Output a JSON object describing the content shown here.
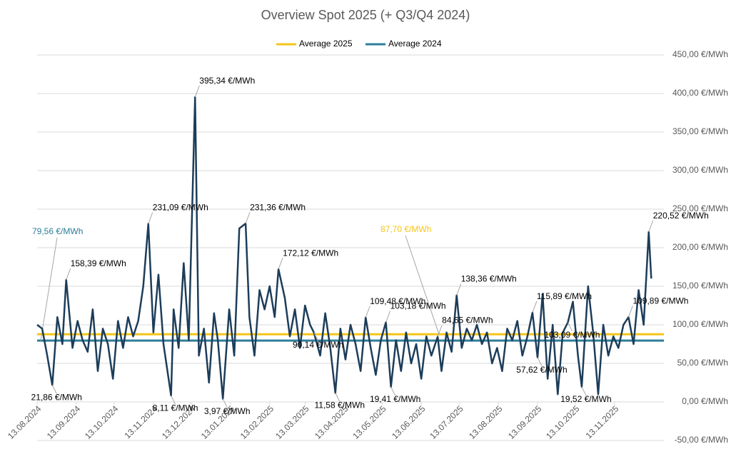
{
  "chart_data": {
    "type": "line",
    "title": "Overview Spot 2025 (+ Q3/Q4 2024)",
    "x": [
      "2024-08-13",
      "2024-08-17",
      "2024-08-21",
      "2024-08-25",
      "2024-08-29",
      "2024-09-02",
      "2024-09-05",
      "2024-09-10",
      "2024-09-14",
      "2024-09-18",
      "2024-09-22",
      "2024-09-26",
      "2024-09-30",
      "2024-10-04",
      "2024-10-08",
      "2024-10-12",
      "2024-10-16",
      "2024-10-20",
      "2024-10-24",
      "2024-10-28",
      "2024-11-01",
      "2024-11-05",
      "2024-11-09",
      "2024-11-13",
      "2024-11-17",
      "2024-11-21",
      "2024-11-27",
      "2024-11-29",
      "2024-12-03",
      "2024-12-07",
      "2024-12-11",
      "2024-12-16",
      "2024-12-19",
      "2024-12-23",
      "2024-12-27",
      "2024-12-31",
      "2025-01-03",
      "2025-01-07",
      "2025-01-12",
      "2025-01-16",
      "2025-01-20",
      "2025-01-25",
      "2025-01-28",
      "2025-02-01",
      "2025-02-05",
      "2025-02-09",
      "2025-02-13",
      "2025-02-17",
      "2025-02-20",
      "2025-02-25",
      "2025-03-01",
      "2025-03-05",
      "2025-03-09",
      "2025-03-13",
      "2025-03-17",
      "2025-03-20",
      "2025-03-25",
      "2025-03-29",
      "2025-04-02",
      "2025-04-06",
      "2025-04-10",
      "2025-04-14",
      "2025-04-18",
      "2025-04-22",
      "2025-04-26",
      "2025-04-30",
      "2025-05-04",
      "2025-05-08",
      "2025-05-12",
      "2025-05-16",
      "2025-05-20",
      "2025-05-24",
      "2025-05-28",
      "2025-06-01",
      "2025-06-05",
      "2025-06-09",
      "2025-06-13",
      "2025-06-17",
      "2025-06-21",
      "2025-06-26",
      "2025-06-29",
      "2025-07-03",
      "2025-07-07",
      "2025-07-11",
      "2025-07-15",
      "2025-07-19",
      "2025-07-23",
      "2025-07-27",
      "2025-07-31",
      "2025-08-04",
      "2025-08-08",
      "2025-08-12",
      "2025-08-16",
      "2025-08-20",
      "2025-08-24",
      "2025-08-28",
      "2025-09-01",
      "2025-09-05",
      "2025-09-09",
      "2025-09-13",
      "2025-09-17",
      "2025-09-21",
      "2025-09-25",
      "2025-09-29",
      "2025-10-03",
      "2025-10-07",
      "2025-10-11",
      "2025-10-15",
      "2025-10-18",
      "2025-10-23",
      "2025-10-27",
      "2025-10-31",
      "2025-11-04",
      "2025-11-08",
      "2025-11-12",
      "2025-11-16",
      "2025-11-20",
      "2025-11-24",
      "2025-11-28",
      "2025-12-02",
      "2025-12-06",
      "2025-12-10",
      "2025-12-12"
    ],
    "series": [
      {
        "color": "#1c3d5a",
        "values": [
          100,
          95,
          60,
          21.86,
          110,
          75,
          158.39,
          70,
          105,
          80,
          65,
          120,
          40,
          95,
          75,
          30,
          105,
          70,
          110,
          85,
          105,
          150,
          231.09,
          90,
          165,
          75,
          8.11,
          120,
          70,
          180,
          80,
          395.34,
          60,
          95,
          25,
          115,
          80,
          3.97,
          120,
          60,
          225,
          231.36,
          110,
          60,
          145,
          120,
          150,
          110,
          172.12,
          135,
          85,
          120,
          70,
          125,
          100,
          90.14,
          60,
          115,
          70,
          11.58,
          95,
          55,
          100,
          75,
          40,
          109.48,
          70,
          35,
          80,
          103.18,
          19.41,
          80,
          40,
          90,
          50,
          75,
          30,
          85,
          60,
          84.65,
          40,
          90,
          65,
          138.36,
          70,
          95,
          80,
          100,
          75,
          90,
          50,
          70,
          40,
          95,
          80,
          105,
          60,
          85,
          115.89,
          57.62,
          140,
          30,
          100,
          10,
          90,
          103.09,
          130,
          60,
          19.52,
          150,
          90,
          10,
          100,
          60,
          85,
          70,
          100,
          109.89,
          75,
          145,
          100,
          220.52,
          160
        ],
        "value_labels": [
          null,
          null,
          null,
          "21,86 €/MWh",
          null,
          null,
          "158,39 €/MWh",
          null,
          null,
          null,
          null,
          null,
          null,
          null,
          null,
          null,
          null,
          null,
          null,
          null,
          null,
          null,
          "231,09 €/MWh",
          null,
          null,
          null,
          "8,11 €/MWh",
          null,
          null,
          null,
          null,
          "395,34 €/MWh",
          null,
          null,
          null,
          null,
          null,
          "3,97 €/MWh",
          null,
          null,
          null,
          "231,36 €/MWh",
          null,
          null,
          null,
          null,
          null,
          null,
          "172,12 €/MWh",
          null,
          null,
          null,
          null,
          null,
          null,
          "90,14 €/MWh",
          null,
          null,
          null,
          "11,58 €/MWh",
          null,
          null,
          null,
          null,
          null,
          "109,48 €/MWh",
          null,
          null,
          null,
          "103,18 €/MWh",
          "19,41 €/MWh",
          null,
          null,
          null,
          null,
          null,
          null,
          null,
          null,
          "84,65 €/MWh",
          null,
          null,
          null,
          "138,36 €/MWh",
          null,
          null,
          null,
          null,
          null,
          null,
          null,
          null,
          null,
          null,
          null,
          null,
          null,
          null,
          "115,89 €/MWh",
          "57,62 €/MWh",
          null,
          null,
          null,
          null,
          null,
          "103,09 €/MWh",
          null,
          null,
          "19,52 €/MWh",
          null,
          null,
          null,
          null,
          null,
          null,
          null,
          null,
          "109,89 €/MWh",
          null,
          null,
          null,
          "220,52 €/MWh",
          null
        ]
      }
    ],
    "reference_lines": [
      {
        "name": "Average 2025",
        "color": "#f5c518",
        "value": 87.7,
        "value_label": "87,70 €/MWh"
      },
      {
        "name": "Average 2024",
        "color": "#2e7d9a",
        "value": 79.56,
        "value_label": "79,56 €/MWh"
      }
    ],
    "xlim": [
      "2024-08-13",
      "2025-12-22"
    ],
    "xticks": [
      {
        "value": "2024-08-13",
        "label": "13.08.2024"
      },
      {
        "value": "2024-09-13",
        "label": "13.09.2024"
      },
      {
        "value": "2024-10-13",
        "label": "13.10.2024"
      },
      {
        "value": "2024-11-13",
        "label": "13.11.2024"
      },
      {
        "value": "2024-12-13",
        "label": "13.12.2024"
      },
      {
        "value": "2025-01-13",
        "label": "13.01.2025"
      },
      {
        "value": "2025-02-13",
        "label": "13.02.2025"
      },
      {
        "value": "2025-03-13",
        "label": "13.03.2025"
      },
      {
        "value": "2025-04-13",
        "label": "13.04.2025"
      },
      {
        "value": "2025-05-13",
        "label": "13.05.2025"
      },
      {
        "value": "2025-06-13",
        "label": "13.06.2025"
      },
      {
        "value": "2025-07-13",
        "label": "13.07.2025"
      },
      {
        "value": "2025-08-13",
        "label": "13.08.2025"
      },
      {
        "value": "2025-09-13",
        "label": "13.09.2025"
      },
      {
        "value": "2025-10-13",
        "label": "13.10.2025"
      },
      {
        "value": "2025-11-13",
        "label": "13.11.2025"
      }
    ],
    "ylim": [
      -50,
      450
    ],
    "yticks": [
      {
        "value": -50,
        "label": "-50,00 €/MWh"
      },
      {
        "value": 0,
        "label": "0,00 €/MWh"
      },
      {
        "value": 50,
        "label": "50,00 €/MWh"
      },
      {
        "value": 100,
        "label": "100,00 €/MWh"
      },
      {
        "value": 150,
        "label": "150,00 €/MWh"
      },
      {
        "value": 200,
        "label": "200,00 €/MWh"
      },
      {
        "value": 250,
        "label": "250,00 €/MWh"
      },
      {
        "value": 300,
        "label": "300,00 €/MWh"
      },
      {
        "value": 350,
        "label": "350,00 €/MWh"
      },
      {
        "value": 400,
        "label": "400,00 €/MWh"
      },
      {
        "value": 450,
        "label": "450,00 €/MWh"
      }
    ],
    "grid": true,
    "y_axis_side": "right",
    "legend": "top"
  }
}
